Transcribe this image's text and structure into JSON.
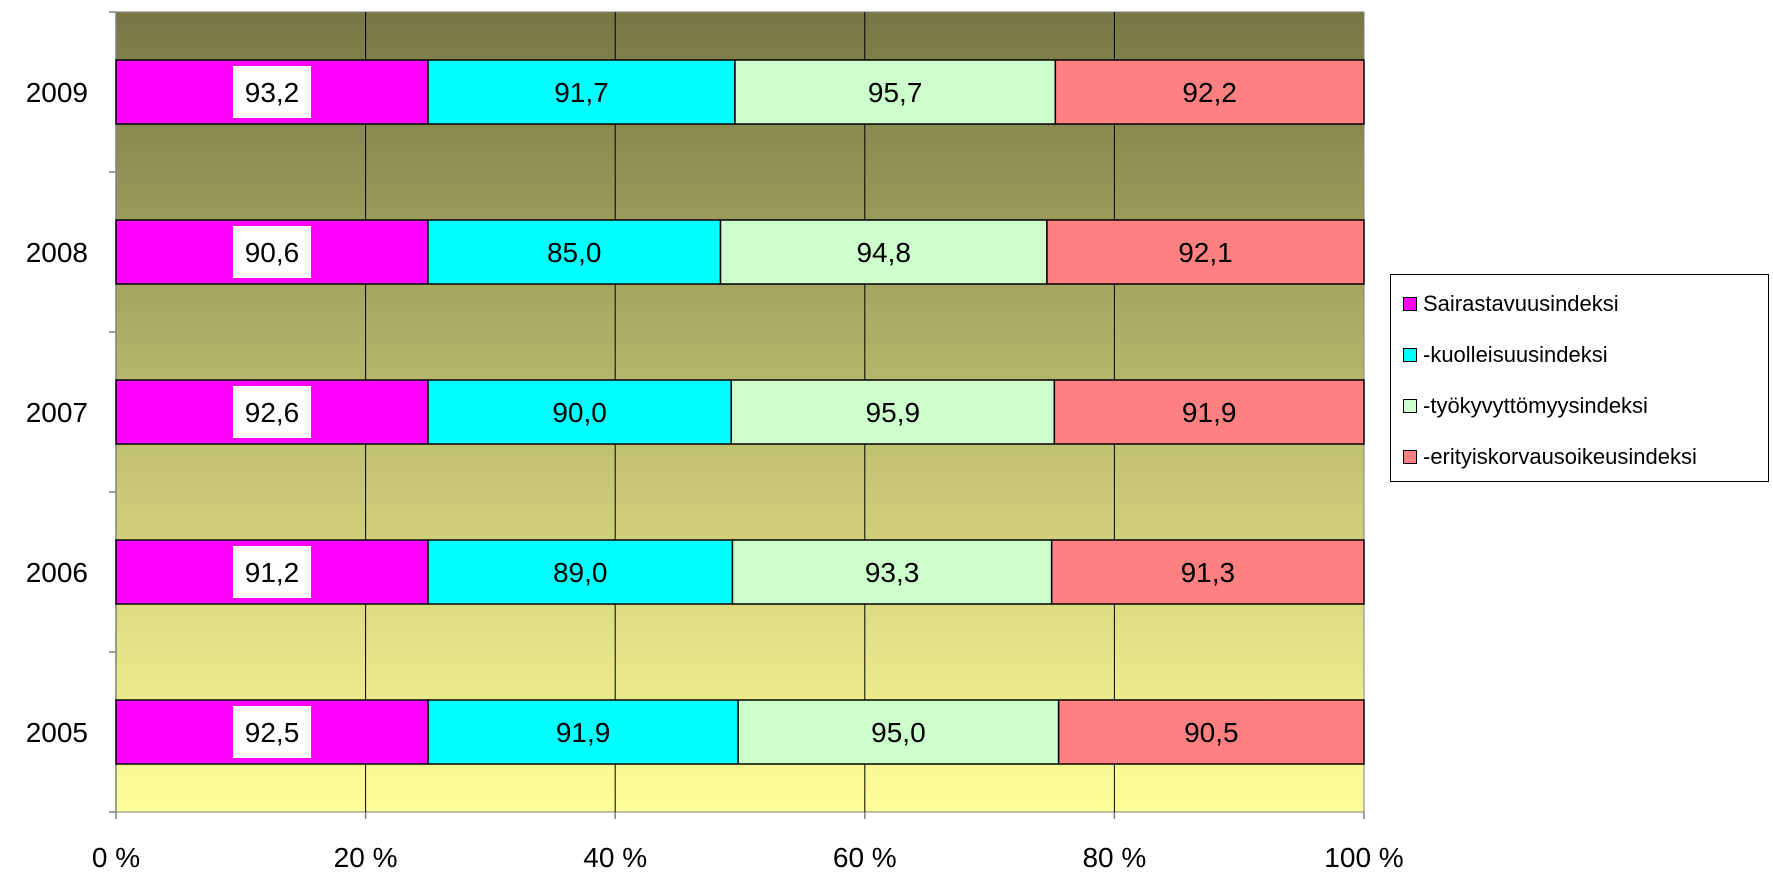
{
  "chart_data": {
    "type": "bar",
    "orientation": "horizontal",
    "stacked": "percent",
    "categories": [
      "2005",
      "2006",
      "2007",
      "2008",
      "2009"
    ],
    "series": [
      {
        "name": "Sairastavuusindeksi",
        "color": "#ff00ff",
        "values": [
          92.5,
          91.2,
          92.6,
          90.6,
          93.2
        ],
        "labels": [
          "92,5",
          "91,2",
          "92,6",
          "90,6",
          "93,2"
        ]
      },
      {
        "name": "-kuolleisuusindeksi",
        "color": "#00ffff",
        "values": [
          91.9,
          89.0,
          90.0,
          85.0,
          91.7
        ],
        "labels": [
          "91,9",
          "89,0",
          "90,0",
          "85,0",
          "91,7"
        ]
      },
      {
        "name": "-työkyvyttömyysindeksi",
        "color": "#ccffcc",
        "values": [
          95.0,
          93.3,
          95.9,
          94.8,
          95.7
        ],
        "labels": [
          "95,0",
          "93,3",
          "95,9",
          "94,8",
          "95,7"
        ]
      },
      {
        "name": "-erityiskorvausoikeusindeksi",
        "color": "#ff8080",
        "values": [
          90.5,
          91.3,
          91.9,
          92.1,
          92.2
        ],
        "labels": [
          "90,5",
          "91,3",
          "91,9",
          "92,1",
          "92,2"
        ]
      }
    ],
    "x_ticks": [
      "0 %",
      "20 %",
      "40 %",
      "60 %",
      "80 %",
      "100 %"
    ],
    "xlim": [
      0,
      100
    ],
    "grid": true,
    "legend_position": "right",
    "background_gradient": [
      "#ffff99",
      "#777744"
    ],
    "title": "",
    "xlabel": "",
    "ylabel": ""
  }
}
